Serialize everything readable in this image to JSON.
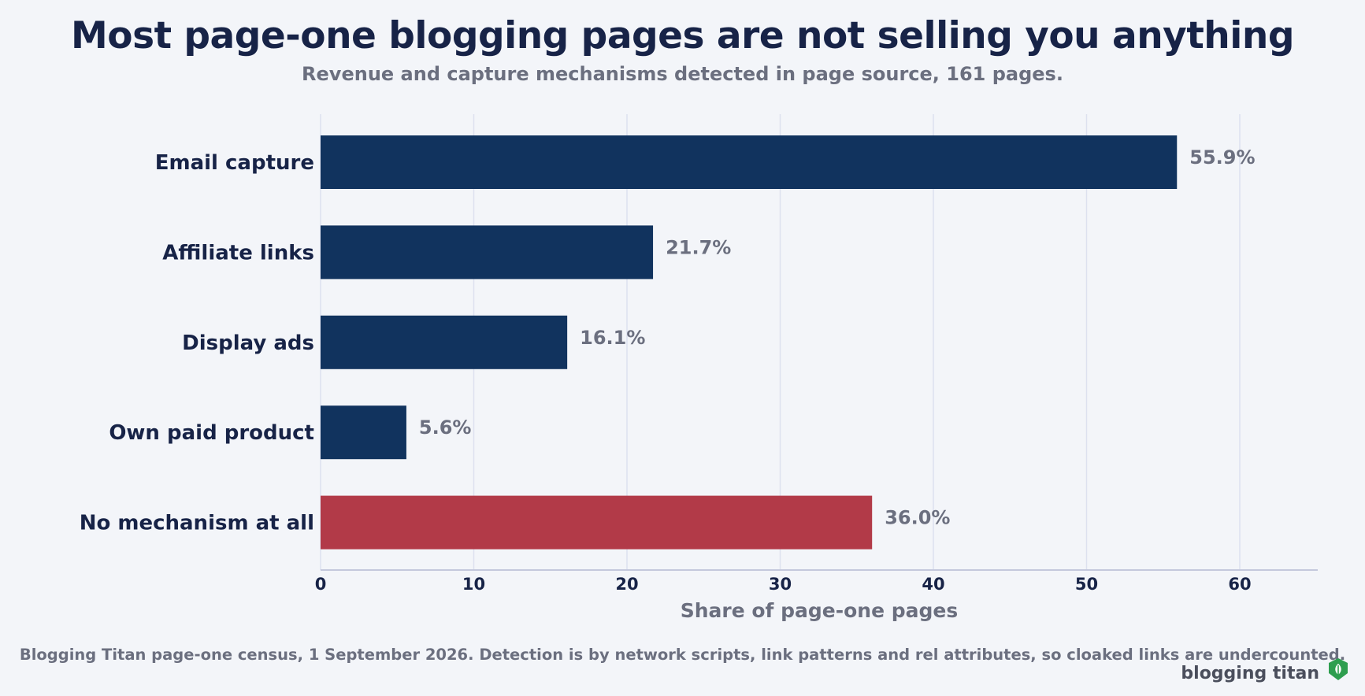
{
  "title": "Most page-one blogging pages are not selling you anything",
  "subtitle": "Revenue and capture mechanisms detected in page source, 161 pages.",
  "source_note": "Blogging Titan page-one census, 1 September 2026. Detection is by network scripts, link patterns and rel attributes, so cloaked links are undercounted.",
  "brand": "blogging titan",
  "brand_icon": "shield-leaf-icon",
  "colors": {
    "primary_bar": "#11335e",
    "highlight_bar": "#b23a48",
    "label_text": "#172347",
    "value_text": "#6b6f7f",
    "grid": "#dde1ef",
    "brand_green": "#2e9e4f"
  },
  "chart_data": {
    "type": "bar",
    "orientation": "horizontal",
    "categories": [
      "Email capture",
      "Affiliate links",
      "Display ads",
      "Own paid product",
      "No mechanism at all"
    ],
    "values": [
      55.9,
      21.7,
      16.1,
      5.6,
      36.0
    ],
    "data_labels": [
      "55.9%",
      "21.7%",
      "16.1%",
      "5.6%",
      "36.0%"
    ],
    "highlighted_category": "No mechanism at all",
    "xlabel": "Share of page-one pages",
    "ylabel": "",
    "xlim": [
      0,
      65
    ],
    "xticks": [
      0,
      10,
      20,
      30,
      40,
      50,
      60
    ],
    "grid": "vertical"
  }
}
